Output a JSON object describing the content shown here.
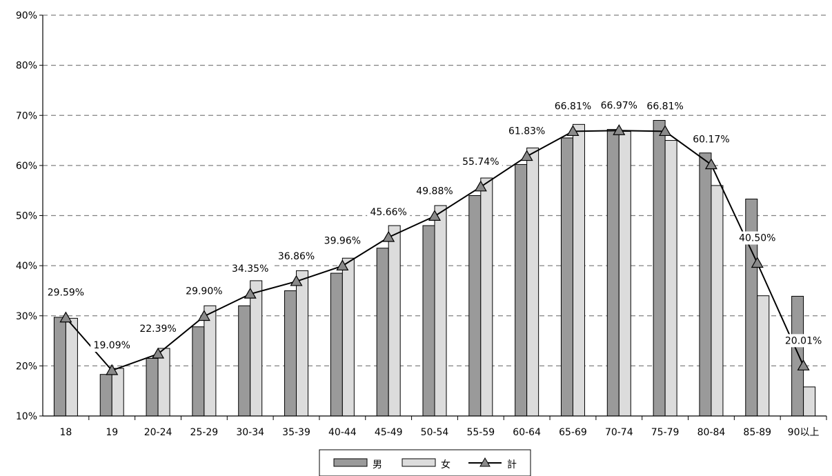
{
  "chart_data": {
    "type": "bar",
    "categories": [
      "18",
      "19",
      "20-24",
      "25-29",
      "30-34",
      "35-39",
      "40-44",
      "45-49",
      "50-54",
      "55-59",
      "60-64",
      "65-69",
      "70-74",
      "75-79",
      "80-84",
      "85-89",
      "90以上"
    ],
    "ylim": [
      10,
      90
    ],
    "yticks": [
      "10%",
      "20%",
      "30%",
      "40%",
      "50%",
      "60%",
      "70%",
      "80%",
      "90%"
    ],
    "grid": true,
    "legend_position": "bottom",
    "series": [
      {
        "name": "男",
        "type": "bar",
        "color": "#9a9a9a",
        "values": [
          29.7,
          18.3,
          21.5,
          27.8,
          32.0,
          35.0,
          38.5,
          43.5,
          48.0,
          54.0,
          60.2,
          65.5,
          67.2,
          69.0,
          62.5,
          53.3,
          33.9
        ]
      },
      {
        "name": "女",
        "type": "bar",
        "color": "#dcdcdc",
        "values": [
          29.5,
          19.5,
          23.5,
          32.0,
          37.0,
          39.0,
          41.5,
          48.0,
          52.0,
          57.5,
          63.5,
          68.2,
          66.8,
          65.0,
          56.0,
          34.0,
          15.8
        ]
      },
      {
        "name": "計",
        "type": "line",
        "color": "#000000",
        "marker": "triangle",
        "values": [
          29.59,
          19.09,
          22.39,
          29.9,
          34.35,
          36.86,
          39.96,
          45.66,
          49.88,
          55.74,
          61.83,
          66.81,
          66.97,
          66.81,
          60.17,
          40.5,
          20.01
        ],
        "labels": [
          "29.59%",
          "19.09%",
          "22.39%",
          "29.90%",
          "34.35%",
          "36.86%",
          "39.96%",
          "45.66%",
          "49.88%",
          "55.74%",
          "61.83%",
          "66.81%",
          "66.97%",
          "66.81%",
          "60.17%",
          "40.50%",
          "20.01%"
        ]
      }
    ]
  }
}
